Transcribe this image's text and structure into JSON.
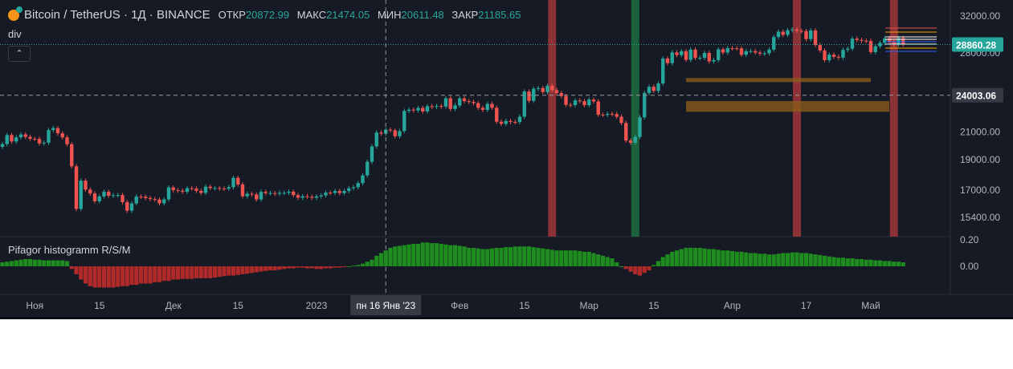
{
  "header": {
    "symbol": "Bitcoin / TetherUS · 1Д · BINANCE",
    "open_label": "ОТКР",
    "open": "20872.99",
    "high_label": "МАКС",
    "high": "21474.05",
    "low_label": "МИН",
    "low": "20611.48",
    "close_label": "ЗАКР",
    "close": "21185.65",
    "study": "div",
    "collapse_icon": "chevron-up-icon"
  },
  "indicator": {
    "title": "Pifagor histogramm R/S/M"
  },
  "colors": {
    "up": "#26a69a",
    "down": "#ef5350",
    "hist_up": "#1e8c1e",
    "hist_down": "#b02a2a",
    "band_red": "#b23b3b",
    "band_green": "#1e7a44",
    "box": "#8a5a1a",
    "bg": "#161a25"
  },
  "chart_data": [
    {
      "type": "candlestick",
      "title": "Bitcoin / TetherUS · 1Д · BINANCE",
      "scale": "log",
      "ylim": [
        15000,
        33500
      ],
      "start_date": "2022-10-25",
      "close": [
        20100,
        20770,
        20290,
        20600,
        20820,
        20630,
        20490,
        20480,
        20150,
        20200,
        21150,
        21300,
        20900,
        20600,
        20090,
        18540,
        15880,
        17600,
        17040,
        16800,
        16330,
        16620,
        16900,
        16660,
        16690,
        16700,
        16280,
        15780,
        16200,
        16610,
        16600,
        16520,
        16460,
        16430,
        16210,
        16440,
        17170,
        17000,
        16970,
        16900,
        17120,
        17100,
        16960,
        16830,
        17220,
        17130,
        17130,
        17100,
        17090,
        17190,
        17780,
        17360,
        16630,
        16780,
        16740,
        16440,
        16900,
        16820,
        16820,
        16780,
        16840,
        16840,
        16910,
        16700,
        16540,
        16630,
        16600,
        16540,
        16620,
        16680,
        16850,
        16830,
        16950,
        16820,
        16950,
        17120,
        17180,
        17440,
        17940,
        18850,
        19930,
        20960,
        20880,
        21180,
        21130,
        20680,
        21070,
        22670,
        22780,
        22710,
        22920,
        22630,
        23060,
        23010,
        23080,
        23030,
        23740,
        22830,
        23130,
        23730,
        23490,
        23430,
        23320,
        22930,
        22760,
        23260,
        22930,
        21800,
        21630,
        21860,
        21780,
        21770,
        22200,
        24330,
        23520,
        24570,
        24630,
        24280,
        24840,
        24450,
        24190,
        23930,
        23180,
        23160,
        23550,
        23490,
        23150,
        23630,
        23470,
        22360,
        22350,
        22430,
        22410,
        22200,
        21700,
        20360,
        20200,
        20630,
        22150,
        24200,
        24750,
        24380,
        25050,
        27430,
        26970,
        28040,
        27770,
        28170,
        27300,
        28330,
        27480,
        27490,
        27990,
        27140,
        27270,
        28350,
        28030,
        28470,
        28460,
        28450,
        27800,
        28170,
        28170,
        28030,
        27920,
        27950,
        28330,
        29650,
        30230,
        29880,
        30390,
        30480,
        30320,
        30300,
        29430,
        30380,
        28800,
        28240,
        27260,
        27820,
        27590,
        27510,
        28300,
        28420,
        29480,
        29340,
        29250,
        29230,
        28070,
        28670,
        29030,
        29510,
        29100,
        28850,
        29540,
        28860
      ],
      "y_ticks": [
        "32000.00",
        "28000.00",
        "21000.00",
        "19000.00",
        "17000.00",
        "15400.00"
      ],
      "price_badges": [
        {
          "value": "28860.28",
          "kind": "last"
        },
        {
          "value": "24003.06",
          "kind": "crosshair"
        }
      ],
      "vertical_bands": [
        {
          "date": "2023-02-21",
          "color": "red"
        },
        {
          "date": "2023-03-11",
          "color": "green"
        },
        {
          "date": "2023-04-15",
          "color": "red"
        },
        {
          "date": "2023-05-06",
          "color": "red"
        }
      ],
      "zones": [
        {
          "from": "2023-03-22",
          "to": "2023-05-01",
          "low": 25200,
          "high": 25550
        },
        {
          "from": "2023-03-22",
          "to": "2023-05-05",
          "low": 22600,
          "high": 23500
        }
      ],
      "x_ticks": [
        {
          "label": "Ноя",
          "date": "2022-11-01"
        },
        {
          "label": "15",
          "date": "2022-11-15"
        },
        {
          "label": "Дек",
          "date": "2022-12-01"
        },
        {
          "label": "15",
          "date": "2022-12-15"
        },
        {
          "label": "2023",
          "date": "2023-01-01"
        },
        {
          "label": "Фев",
          "date": "2023-02-01"
        },
        {
          "label": "15",
          "date": "2023-02-15"
        },
        {
          "label": "Мар",
          "date": "2023-03-01"
        },
        {
          "label": "15",
          "date": "2023-03-15"
        },
        {
          "label": "Апр",
          "date": "2023-04-01"
        },
        {
          "label": "17",
          "date": "2023-04-17"
        },
        {
          "label": "Май",
          "date": "2023-05-01"
        }
      ],
      "crosshair": {
        "date": "2023-01-16",
        "label": "пн 16 Янв '23",
        "price": 24003.06
      }
    },
    {
      "type": "bar",
      "title": "Pifagor histogramm R/S/M",
      "ylim": [
        -0.2,
        0.22
      ],
      "y_ticks": [
        "0.20",
        "0.00"
      ],
      "values": [
        0.03,
        0.035,
        0.04,
        0.045,
        0.05,
        0.055,
        0.055,
        0.05,
        0.05,
        0.045,
        0.045,
        0.045,
        0.045,
        0.045,
        0.04,
        -0.02,
        -0.06,
        -0.1,
        -0.13,
        -0.15,
        -0.16,
        -0.16,
        -0.16,
        -0.16,
        -0.16,
        -0.155,
        -0.15,
        -0.15,
        -0.14,
        -0.14,
        -0.13,
        -0.13,
        -0.13,
        -0.12,
        -0.12,
        -0.11,
        -0.11,
        -0.1,
        -0.1,
        -0.095,
        -0.095,
        -0.095,
        -0.09,
        -0.09,
        -0.09,
        -0.09,
        -0.085,
        -0.08,
        -0.075,
        -0.07,
        -0.07,
        -0.065,
        -0.06,
        -0.055,
        -0.05,
        -0.045,
        -0.04,
        -0.035,
        -0.03,
        -0.03,
        -0.025,
        -0.02,
        -0.015,
        -0.015,
        -0.01,
        -0.01,
        -0.015,
        -0.015,
        -0.02,
        -0.02,
        -0.015,
        -0.015,
        -0.01,
        -0.01,
        -0.005,
        0,
        0.005,
        0.01,
        0.02,
        0.035,
        0.05,
        0.08,
        0.1,
        0.12,
        0.14,
        0.15,
        0.155,
        0.16,
        0.165,
        0.17,
        0.17,
        0.18,
        0.18,
        0.175,
        0.175,
        0.17,
        0.165,
        0.16,
        0.16,
        0.155,
        0.15,
        0.14,
        0.14,
        0.135,
        0.13,
        0.13,
        0.135,
        0.14,
        0.14,
        0.145,
        0.145,
        0.15,
        0.15,
        0.15,
        0.15,
        0.145,
        0.14,
        0.135,
        0.13,
        0.125,
        0.12,
        0.12,
        0.12,
        0.12,
        0.12,
        0.115,
        0.11,
        0.11,
        0.1,
        0.09,
        0.08,
        0.07,
        0.06,
        0.03,
        0,
        -0.02,
        -0.04,
        -0.06,
        -0.07,
        -0.05,
        -0.03,
        0.01,
        0.04,
        0.07,
        0.09,
        0.11,
        0.12,
        0.13,
        0.14,
        0.14,
        0.14,
        0.14,
        0.135,
        0.13,
        0.13,
        0.125,
        0.12,
        0.12,
        0.115,
        0.11,
        0.11,
        0.105,
        0.1,
        0.1,
        0.095,
        0.095,
        0.09,
        0.09,
        0.095,
        0.1,
        0.1,
        0.105,
        0.105,
        0.1,
        0.1,
        0.095,
        0.09,
        0.085,
        0.08,
        0.075,
        0.07,
        0.065,
        0.065,
        0.06,
        0.06,
        0.055,
        0.055,
        0.05,
        0.05,
        0.045,
        0.045,
        0.04,
        0.04,
        0.035,
        0.035,
        0.03
      ]
    }
  ]
}
